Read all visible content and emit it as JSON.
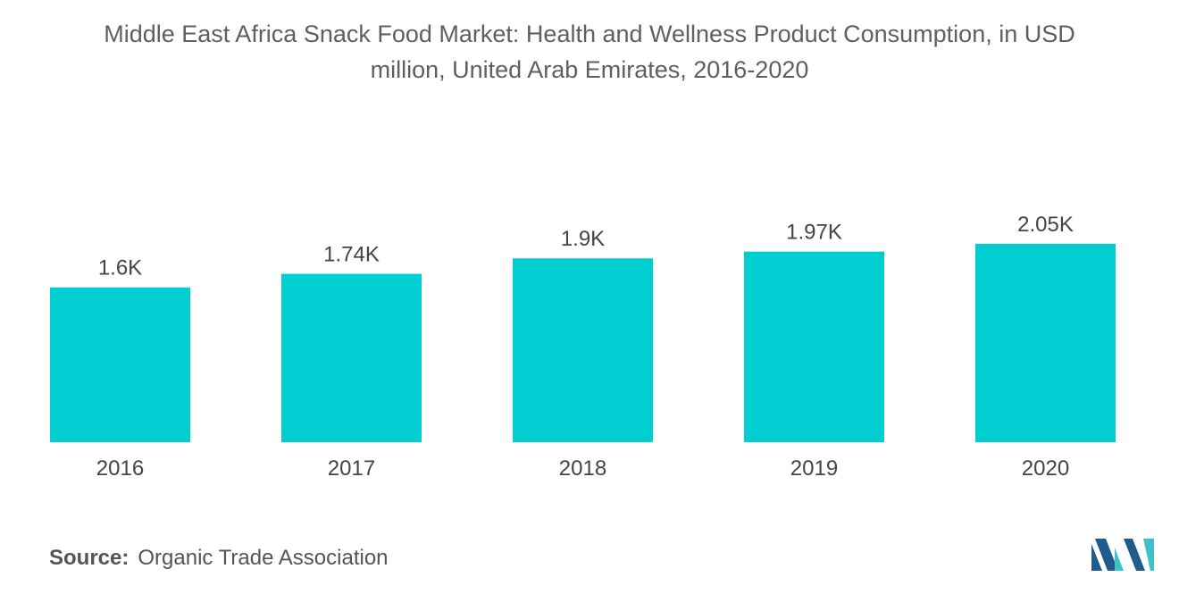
{
  "title_lines": [
    "Middle East Africa Snack Food Market: Health and Wellness Product Consumption, in USD",
    "million, United Arab Emirates, 2016-2020"
  ],
  "source": {
    "label": "Source:",
    "text": "Organic Trade Association"
  },
  "logo": {
    "icon": "mordor-intelligence-logo-icon",
    "color_dark": "#1f5c8b",
    "color_light": "#3fc1c9"
  },
  "chart_data": {
    "type": "bar",
    "title": "Middle East Africa Snack Food Market: Health and Wellness Product Consumption, in USD million, United Arab Emirates, 2016-2020",
    "categories": [
      "2016",
      "2017",
      "2018",
      "2019",
      "2020"
    ],
    "values": [
      1600,
      1740,
      1900,
      1970,
      2050
    ],
    "data_labels": [
      "1.6K",
      "1.74K",
      "1.9K",
      "1.97K",
      "2.05K"
    ],
    "xlabel": "",
    "ylabel": "",
    "ylim": [
      0,
      2050
    ],
    "grid": false,
    "legend": "none",
    "bar_color": "#00ced1"
  }
}
